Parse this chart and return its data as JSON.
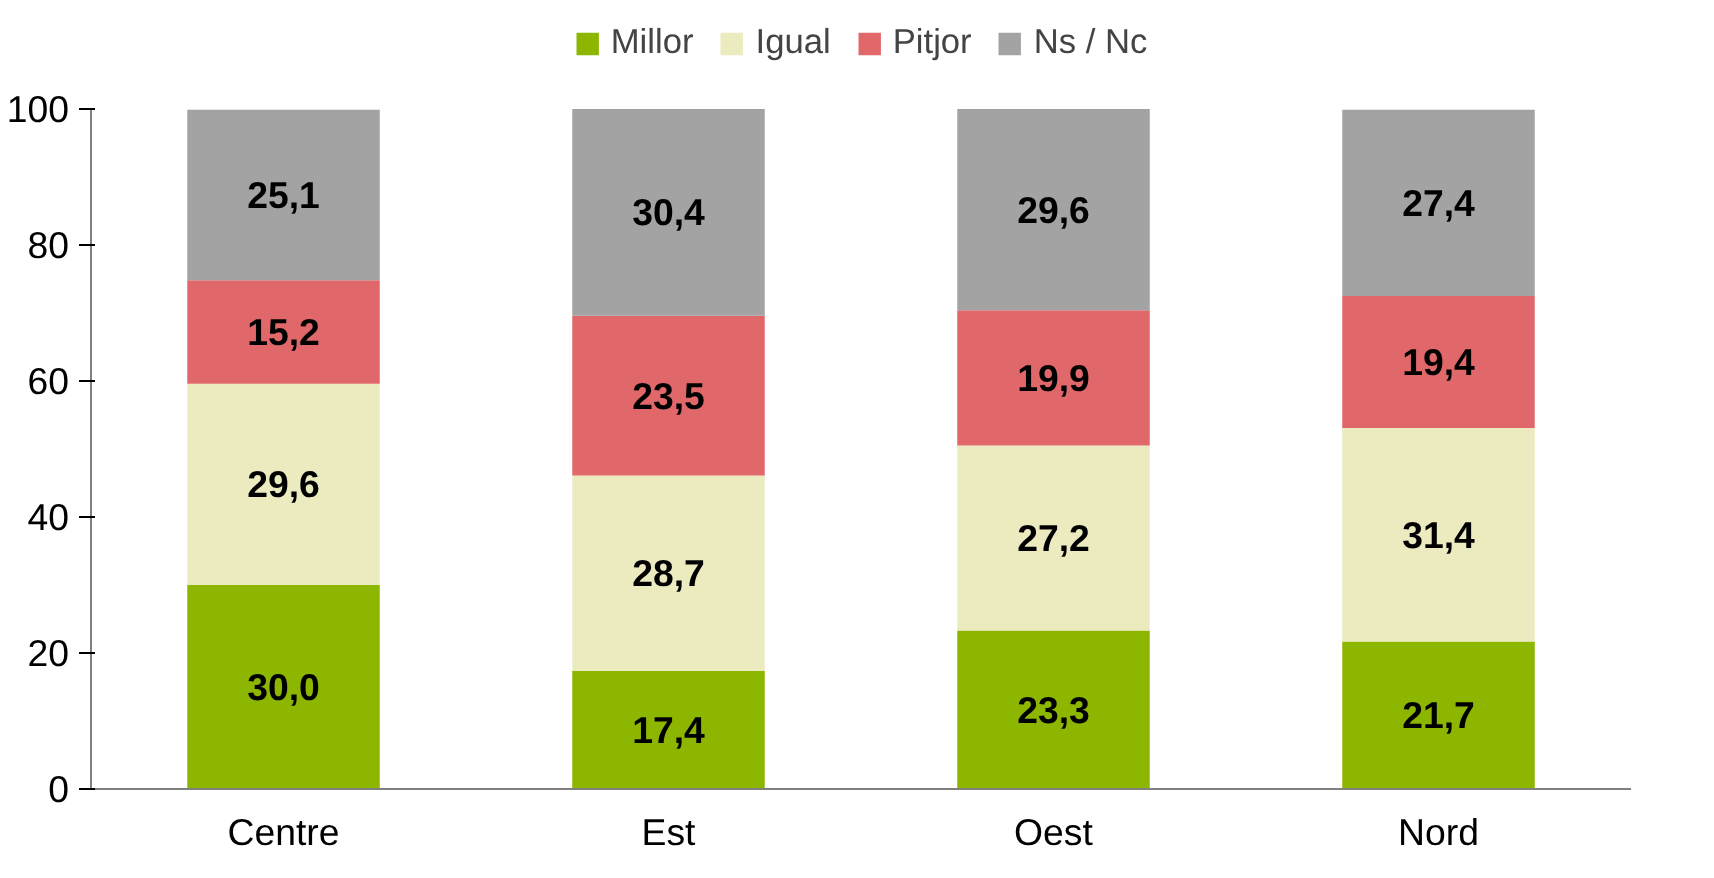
{
  "chart_data": {
    "type": "bar",
    "stacked": true,
    "categories": [
      "Centre",
      "Est",
      "Oest",
      "Nord"
    ],
    "series": [
      {
        "name": "Millor",
        "color": "#8db600",
        "values": [
          30.0,
          17.4,
          23.3,
          21.7
        ],
        "value_labels": [
          "30,0",
          "17,4",
          "23,3",
          "21,7"
        ]
      },
      {
        "name": "Igual",
        "color": "#ecebc0",
        "values": [
          29.6,
          28.7,
          27.2,
          31.4
        ],
        "value_labels": [
          "29,6",
          "28,7",
          "27,2",
          "31,4"
        ]
      },
      {
        "name": "Pitjor",
        "color": "#e0676a",
        "values": [
          15.2,
          23.5,
          19.9,
          19.4
        ],
        "value_labels": [
          "15,2",
          "23,5",
          "19,9",
          "19,4"
        ]
      },
      {
        "name": "Ns / Nc",
        "color": "#a3a3a3",
        "values": [
          25.1,
          30.4,
          29.6,
          27.4
        ],
        "value_labels": [
          "25,1",
          "30,4",
          "29,6",
          "27,4"
        ]
      }
    ],
    "ylim": [
      0,
      100
    ],
    "yticks": [
      0,
      20,
      40,
      60,
      80,
      100
    ],
    "grid": false,
    "legend": "top"
  }
}
